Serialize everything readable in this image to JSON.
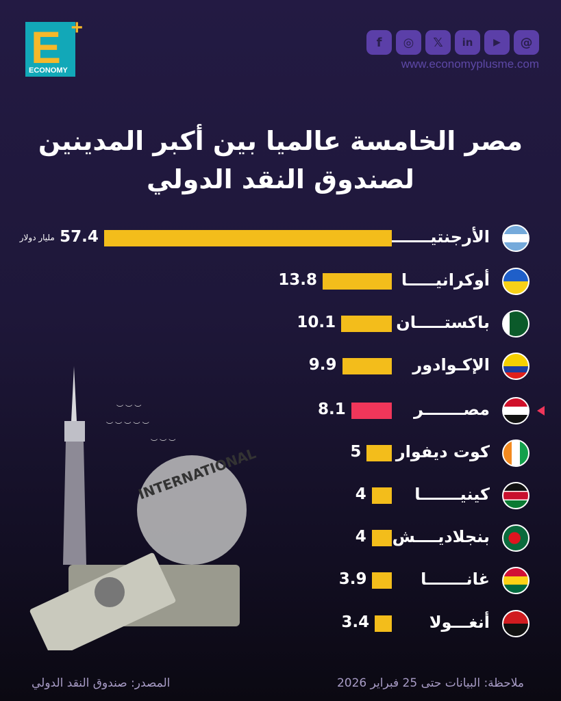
{
  "brand": {
    "logo_letter": "E",
    "logo_plus": "+",
    "logo_text": "ECONOMY",
    "url": "www.economyplusme.com",
    "social_icons": [
      "facebook-icon",
      "instagram-icon",
      "x-icon",
      "linkedin-icon",
      "youtube-icon",
      "threads-icon"
    ]
  },
  "chart_data": {
    "type": "bar",
    "orientation": "horizontal",
    "title": "مصر الخامسة عالميا بين أكبر المدينين لصندوق النقد الدولي",
    "title_lines": [
      "مصر الخامسة عالميا بين أكبر المدينين",
      "لصندوق النقد الدولي"
    ],
    "unit": "مليار دولار",
    "categories": [
      "الأرجنتيـــــــن",
      "أوكرانيـــــا",
      "باكستـــــان",
      "الإكـوادور",
      "مصـــــــر",
      "كوت ديفوار",
      "كينيـــــــا",
      "بنجلاديــــش",
      "غانـــــــا",
      "أنغـــولا"
    ],
    "values": [
      57.4,
      13.8,
      10.1,
      9.9,
      8.1,
      5,
      4,
      4,
      3.9,
      3.4
    ],
    "value_labels": [
      "57.4",
      "13.8",
      "10.1",
      "9.9",
      "8.1",
      "5",
      "4",
      "4",
      "3.9",
      "3.4"
    ],
    "highlight_index": 4,
    "colors": {
      "bar": "#f3bd1b",
      "highlight": "#f0365a"
    }
  },
  "footer": {
    "note": "ملاحظة: البيانات حتى 25 فبراير 2026",
    "source": "المصدر: صندوق النقد الدولي"
  },
  "illustration": {
    "seal_text": "INTERNATIONAL"
  }
}
